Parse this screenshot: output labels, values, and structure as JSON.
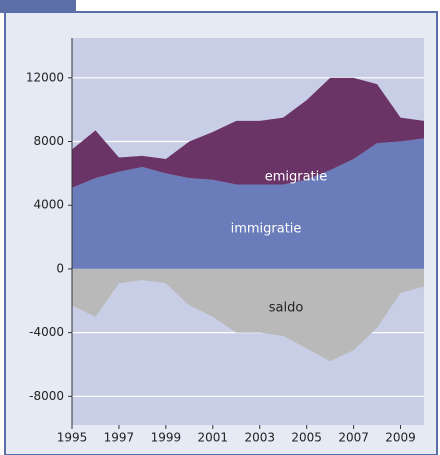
{
  "chart_data": {
    "type": "stacked_area",
    "x": [
      1995,
      1996,
      1997,
      1998,
      1999,
      2000,
      2001,
      2002,
      2003,
      2004,
      2005,
      2006,
      2007,
      2008,
      2009,
      2010
    ],
    "series": [
      {
        "name": "immigratie",
        "color": "#6a7cb9",
        "values": [
          5100,
          5700,
          6100,
          6400,
          6000,
          5700,
          5600,
          5300,
          5300,
          5300,
          5600,
          6200,
          6900,
          7900,
          8000,
          8200
        ]
      },
      {
        "name": "emigratie",
        "color": "#6b3466",
        "values": [
          2400,
          3000,
          900,
          700,
          900,
          2300,
          3000,
          4000,
          4000,
          4200,
          5000,
          5800,
          5100,
          3700,
          1500,
          1100
        ]
      },
      {
        "name": "saldo",
        "color": "#b9b9b9",
        "baseline": "zero",
        "values": [
          -2300,
          -3000,
          -900,
          -700,
          -900,
          -2300,
          -3000,
          -4000,
          -4000,
          -4200,
          -5000,
          -5800,
          -5100,
          -3700,
          -1500,
          -1100
        ]
      }
    ],
    "xlim": [
      1995,
      2010
    ],
    "xticks": [
      1995,
      1997,
      1999,
      2001,
      2003,
      2005,
      2007,
      2009
    ],
    "ylim": [
      -9800,
      14500
    ],
    "yticks": [
      -8000,
      -4000,
      0,
      4000,
      8000,
      12000
    ],
    "grid": true
  }
}
